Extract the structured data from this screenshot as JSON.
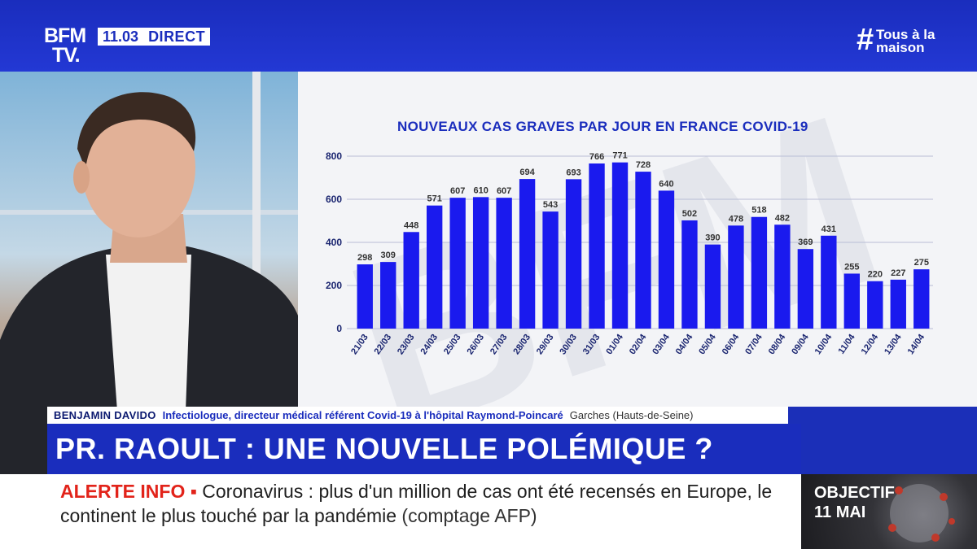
{
  "header": {
    "logo_line1": "BFM",
    "logo_line2": "TV.",
    "time": "11.03",
    "live_label": "DIRECT",
    "hashtag_symbol": "#",
    "hashtag_line1": "Tous à la",
    "hashtag_line2": "maison"
  },
  "chart_data": {
    "type": "bar",
    "title": "NOUVEAUX CAS GRAVES PAR JOUR EN FRANCE COVID-19",
    "categories": [
      "21/03",
      "22/03",
      "23/03",
      "24/03",
      "25/03",
      "26/03",
      "27/03",
      "28/03",
      "29/03",
      "30/03",
      "31/03",
      "01/04",
      "02/04",
      "03/04",
      "04/04",
      "05/04",
      "06/04",
      "07/04",
      "08/04",
      "09/04",
      "10/04",
      "11/04",
      "12/04",
      "13/04",
      "14/04"
    ],
    "values": [
      298,
      309,
      448,
      571,
      607,
      610,
      607,
      694,
      543,
      693,
      766,
      771,
      728,
      640,
      502,
      390,
      478,
      518,
      482,
      369,
      431,
      255,
      220,
      227,
      275
    ],
    "yticks": [
      0,
      200,
      400,
      600,
      800
    ],
    "ylim": [
      0,
      800
    ],
    "bar_color": "#1a1aee",
    "grid": true
  },
  "lower_third": {
    "name": "BENJAMIN DAVIDO",
    "role": "Infectiologue, directeur médical référent Covid-19 à l'hôpital Raymond-Poincaré",
    "place": "Garches (Hauts-de-Seine)",
    "headline": "PR. RAOULT : UNE NOUVELLE POLÉMIQUE ?"
  },
  "ticker": {
    "tag": "ALERTE INFO",
    "text": "Coronavirus : plus d'un million de cas ont été recensés en Europe, le continent le plus touché par la pandémie",
    "source": "(comptage AFP)"
  },
  "objectif": {
    "line1": "OBJECTIF",
    "line2": "11 MAI"
  },
  "colors": {
    "brand_blue": "#1a2dbd",
    "alert_red": "#e2231a"
  }
}
